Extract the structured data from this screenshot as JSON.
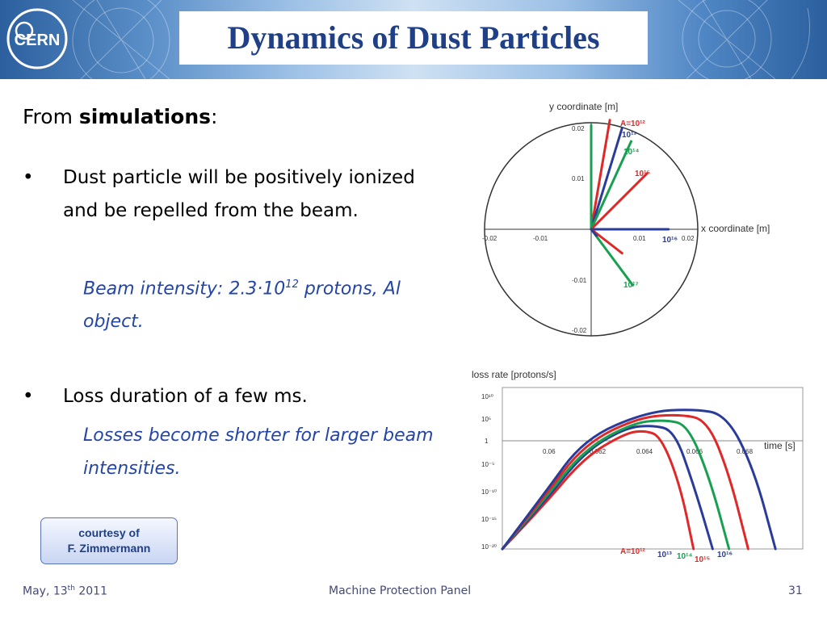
{
  "header": {
    "logo_text": "CERN",
    "title": "Dynamics of Dust Particles"
  },
  "lead": {
    "prefix": "From ",
    "bold": "simulations",
    "suffix": ":"
  },
  "bullets": [
    {
      "marker": "•",
      "text": "Dust particle will be positively ionized and be repelled from the beam.",
      "note_prefix": "Beam intensity: 2.3·10",
      "note_sup": "12",
      "note_suffix": " protons, Al object."
    },
    {
      "marker": "•",
      "text": "Loss duration of a few ms.",
      "note": "Losses become shorter for larger beam intensities."
    }
  ],
  "courtesy": {
    "line1": "courtesy of",
    "line2": "F. Zimmermann"
  },
  "chart_data": [
    {
      "type": "line",
      "xlabel": "x coordinate [m]",
      "ylabel": "y coordinate [m]",
      "xlim": [
        -0.02,
        0.02
      ],
      "ylim": [
        -0.02,
        0.02
      ],
      "x_ticks": [
        "-0.02",
        "-0.01",
        "0.01",
        "0.02"
      ],
      "y_ticks": [
        "0.02",
        "0.01",
        "-0.01",
        "-0.02"
      ],
      "series": [
        {
          "name": "A=10¹²",
          "color": "#e02828",
          "x": [
            0,
            0.0035
          ],
          "y": [
            0,
            0.0205
          ]
        },
        {
          "name": "10¹³",
          "color": "#2a3c9a",
          "x": [
            0,
            0.0058
          ],
          "y": [
            0,
            0.019
          ]
        },
        {
          "name": "10¹⁴",
          "color": "#18a050",
          "x": [
            0,
            0.0075
          ],
          "y": [
            0,
            0.0165
          ]
        },
        {
          "name": "10¹⁵",
          "color": "#e02828",
          "x": [
            0,
            0.0105
          ],
          "y": [
            0,
            0.0105
          ]
        },
        {
          "name": "10¹⁶",
          "color": "#2a3c9a",
          "x": [
            0,
            0.0145
          ],
          "y": [
            0,
            0
          ]
        },
        {
          "name": "10¹⁷",
          "color": "#18a050",
          "x": [
            0,
            0.0078
          ],
          "y": [
            0,
            -0.0105
          ]
        },
        {
          "name": "",
          "color": "#18a050",
          "x": [
            0,
            0.0
          ],
          "y": [
            0,
            0.0195
          ]
        },
        {
          "name": "",
          "color": "#e02828",
          "x": [
            0,
            0.0058
          ],
          "y": [
            0,
            -0.0045
          ]
        },
        {
          "name": "",
          "color": "#2a3c9a",
          "x": [
            0,
            0.001
          ],
          "y": [
            0,
            -0.0012
          ]
        }
      ]
    },
    {
      "type": "line",
      "xlabel": "time [s]",
      "ylabel": "loss rate [protons/s]",
      "xlim": [
        0.058,
        0.069
      ],
      "ylim": [
        -20,
        10
      ],
      "x_ticks": [
        "0.06",
        "0.062",
        "0.064",
        "0.066",
        "0.068"
      ],
      "y_ticks": [
        "10¹⁰",
        "10⁵",
        "1",
        "10⁻⁵",
        "10⁻¹⁰",
        "10⁻¹⁵",
        "10⁻²⁰"
      ],
      "series": [
        {
          "name": "A=10¹²",
          "color": "#e02828",
          "x": [
            0.058,
            0.0595,
            0.061,
            0.0625,
            0.0632,
            0.0638,
            0.0645,
            0.065
          ],
          "y": [
            -20,
            -12,
            -3,
            1.5,
            2,
            1,
            -8,
            -20
          ]
        },
        {
          "name": "10¹³",
          "color": "#2a3c9a",
          "x": [
            0.058,
            0.0595,
            0.061,
            0.0625,
            0.0635,
            0.0643,
            0.065,
            0.0657
          ],
          "y": [
            -20,
            -11.5,
            -2,
            2.5,
            3,
            2,
            -8,
            -20
          ]
        },
        {
          "name": "10¹⁴",
          "color": "#18a050",
          "x": [
            0.058,
            0.0595,
            0.061,
            0.0628,
            0.064,
            0.0648,
            0.0656,
            0.0663
          ],
          "y": [
            -20,
            -11,
            -1.5,
            3.5,
            4,
            3,
            -7,
            -20
          ]
        },
        {
          "name": "10¹⁵",
          "color": "#e02828",
          "x": [
            0.058,
            0.0595,
            0.061,
            0.063,
            0.0645,
            0.0655,
            0.0663,
            0.067
          ],
          "y": [
            -20,
            -10.5,
            -0.5,
            4.5,
            5,
            4,
            -6,
            -20
          ]
        },
        {
          "name": "10¹⁶",
          "color": "#2a3c9a",
          "x": [
            0.058,
            0.0595,
            0.061,
            0.0633,
            0.065,
            0.0662,
            0.0672,
            0.068
          ],
          "y": [
            -20,
            -10,
            0.5,
            5.5,
            6,
            5,
            -5,
            -20
          ]
        }
      ]
    }
  ],
  "footer": {
    "date_prefix": "May, 13",
    "date_sup": "th",
    "date_suffix": " 2011",
    "center": "Machine Protection Panel",
    "page": "31"
  }
}
